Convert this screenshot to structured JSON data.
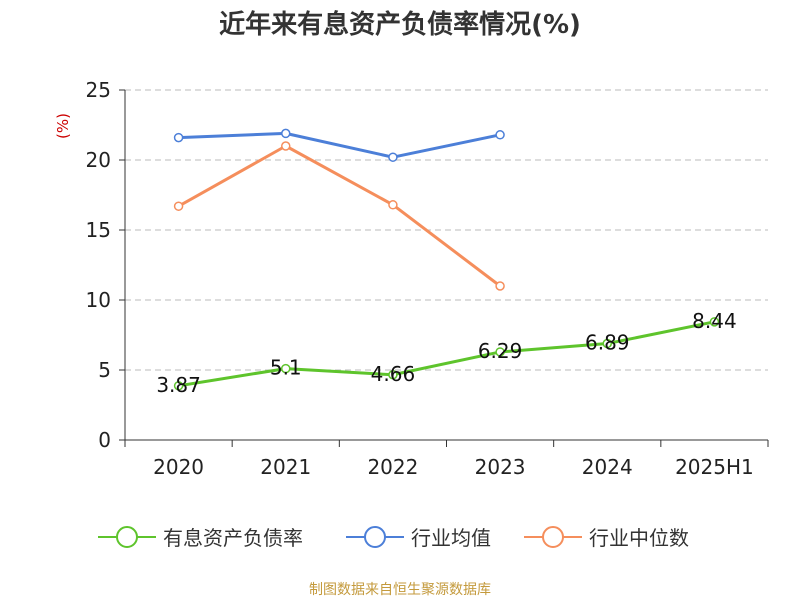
{
  "chart_data": {
    "type": "line",
    "title": "近年来有息资产负债率情况(%)",
    "ylabel": "(%)",
    "xlabel": "",
    "categories": [
      "2020",
      "2021",
      "2022",
      "2023",
      "2024",
      "2025H1"
    ],
    "ylim": [
      0,
      25
    ],
    "yticks": [
      0,
      5,
      10,
      15,
      20,
      25
    ],
    "grid": true,
    "legend_position": "bottom",
    "series": [
      {
        "name": "有息资产负债率",
        "color": "#5ec42c",
        "values": [
          3.87,
          5.1,
          4.66,
          6.29,
          6.89,
          8.44
        ],
        "labels": [
          "3.87",
          "5.1",
          "4.66",
          "6.29",
          "6.89",
          "8.44"
        ]
      },
      {
        "name": "行业均值",
        "color": "#4c7fd8",
        "values": [
          21.6,
          21.9,
          20.2,
          21.8,
          null,
          null
        ]
      },
      {
        "name": "行业中位数",
        "color": "#f58e5c",
        "values": [
          16.7,
          21.0,
          16.8,
          11.0,
          null,
          null
        ]
      }
    ]
  },
  "colors": {
    "axis": "#333333",
    "grid": "#bbbbbb",
    "unit": "#cc0000",
    "source": "#c49a3c"
  },
  "source": "制图数据来自恒生聚源数据库"
}
